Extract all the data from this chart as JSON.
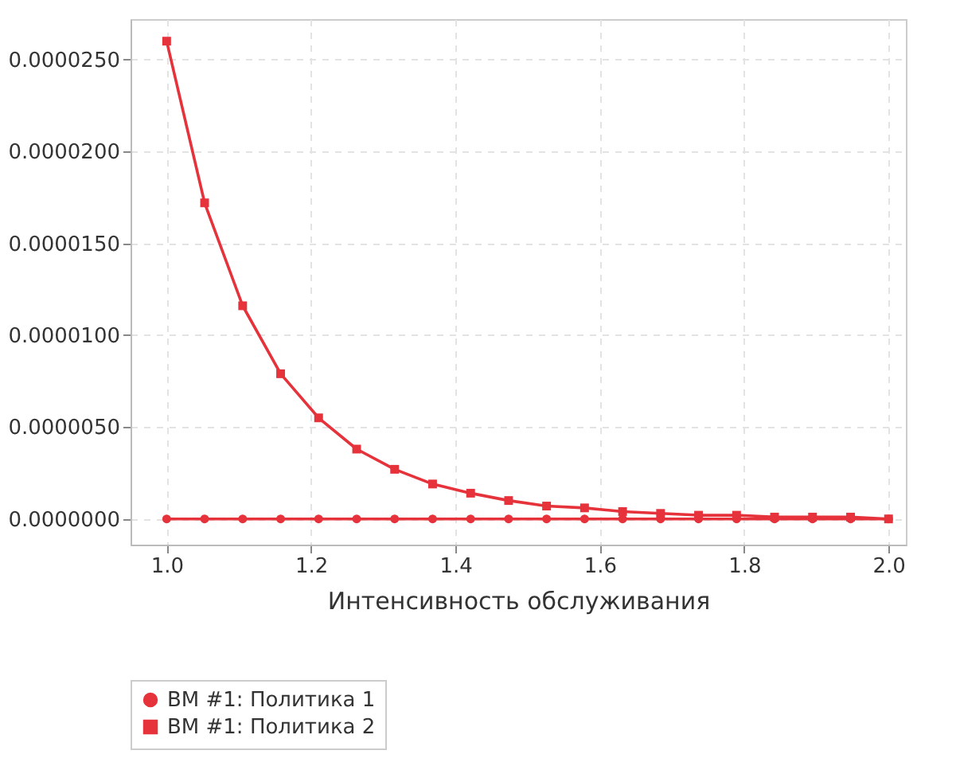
{
  "chart_data": {
    "type": "line",
    "xlabel": "Интенсивность обслуживания",
    "x": [
      1.0,
      1.0526,
      1.1053,
      1.1579,
      1.2105,
      1.2632,
      1.3158,
      1.3684,
      1.4211,
      1.4737,
      1.5263,
      1.5789,
      1.6316,
      1.6842,
      1.7368,
      1.7895,
      1.8421,
      1.8947,
      1.9474,
      2.0
    ],
    "series": [
      {
        "name": "ВМ #1: Политика 1",
        "color": "#e5323b",
        "marker": "circle",
        "values": [
          0,
          0,
          0,
          0,
          0,
          0,
          0,
          0,
          0,
          0,
          0,
          0,
          0,
          0,
          0,
          0,
          0,
          0,
          0,
          0
        ]
      },
      {
        "name": "ВМ #1: Политика 2",
        "color": "#e5323b",
        "marker": "square",
        "values": [
          2.6e-05,
          1.72e-05,
          1.16e-05,
          7.9e-06,
          5.5e-06,
          3.8e-06,
          2.7e-06,
          1.9e-06,
          1.4e-06,
          1e-06,
          7e-07,
          6e-07,
          4e-07,
          3e-07,
          2e-07,
          2e-07,
          1e-07,
          1e-07,
          1e-07,
          0
        ]
      }
    ],
    "xlim": [
      0.95,
      2.024
    ],
    "ylim": [
      -1.4e-06,
      2.72e-05
    ],
    "xticks": [
      {
        "value": 1.0,
        "label": "1.0"
      },
      {
        "value": 1.2,
        "label": "1.2"
      },
      {
        "value": 1.4,
        "label": "1.4"
      },
      {
        "value": 1.6,
        "label": "1.6"
      },
      {
        "value": 1.8,
        "label": "1.8"
      },
      {
        "value": 2.0,
        "label": "2.0"
      }
    ],
    "yticks": [
      {
        "value": 0,
        "label": "0.0000000"
      },
      {
        "value": 5e-06,
        "label": "0.0000050"
      },
      {
        "value": 1e-05,
        "label": "0.0000100"
      },
      {
        "value": 1.5e-05,
        "label": "0.0000150"
      },
      {
        "value": 2e-05,
        "label": "0.0000200"
      },
      {
        "value": 2.5e-05,
        "label": "0.0000250"
      }
    ],
    "grid": true,
    "legend": "bottom",
    "line_style": "solid"
  }
}
